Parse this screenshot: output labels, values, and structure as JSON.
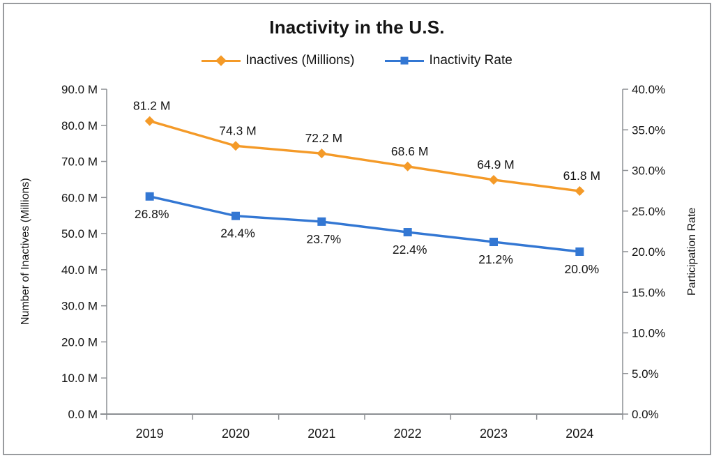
{
  "chart_data": {
    "type": "line",
    "title": "Inactivity in the U.S.",
    "categories": [
      "2019",
      "2020",
      "2021",
      "2022",
      "2023",
      "2024"
    ],
    "series": [
      {
        "name": "Inactives (Millions)",
        "axis": "left",
        "color": "#F49A28",
        "marker": "diamond",
        "values": [
          81.2,
          74.3,
          72.2,
          68.6,
          64.9,
          61.8
        ],
        "point_labels": [
          "81.2 M",
          "74.3 M",
          "72.2 M",
          "68.6 M",
          "64.9 M",
          "61.8 M"
        ],
        "label_position": "above"
      },
      {
        "name": "Inactivity Rate",
        "axis": "right",
        "color": "#3377D3",
        "marker": "square",
        "values": [
          26.8,
          24.4,
          23.7,
          22.4,
          21.2,
          20.0
        ],
        "point_labels": [
          "26.8%",
          "24.4%",
          "23.7%",
          "22.4%",
          "21.2%",
          "20.0%"
        ],
        "label_position": "below"
      }
    ],
    "left_axis": {
      "label": "Number of Inactives (Millions)",
      "min": 0,
      "max": 90,
      "step": 10,
      "ticks": [
        "0.0 M",
        "10.0 M",
        "20.0 M",
        "30.0 M",
        "40.0 M",
        "50.0 M",
        "60.0 M",
        "70.0 M",
        "80.0 M",
        "90.0 M"
      ]
    },
    "right_axis": {
      "label": "Participation Rate",
      "min": 0,
      "max": 40,
      "step": 5,
      "ticks": [
        "0.0%",
        "5.0%",
        "10.0%",
        "15.0%",
        "20.0%",
        "25.0%",
        "30.0%",
        "35.0%",
        "40.0%"
      ]
    },
    "legend_position": "top",
    "grid": false,
    "axis_line_color": "#8c8f93",
    "text_color": "#141414"
  }
}
